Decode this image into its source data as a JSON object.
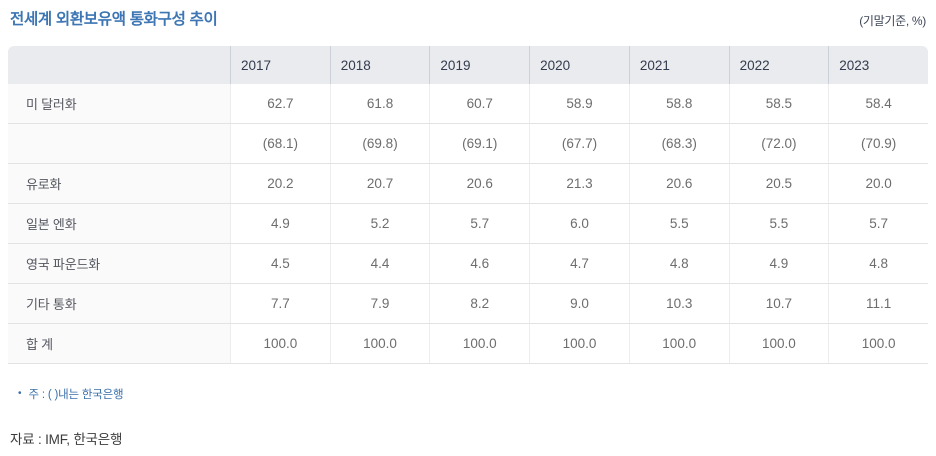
{
  "title": "전세계 외환보유액 통화구성 추이",
  "unit_note": "(기말기준, %)",
  "table": {
    "columns": [
      "2017",
      "2018",
      "2019",
      "2020",
      "2021",
      "2022",
      "2023"
    ],
    "rows": [
      {
        "label": "미 달러화",
        "values": [
          "62.7",
          "61.8",
          "60.7",
          "58.9",
          "58.8",
          "58.5",
          "58.4"
        ]
      },
      {
        "label": "",
        "values": [
          "(68.1)",
          "(69.8)",
          "(69.1)",
          "(67.7)",
          "(68.3)",
          "(72.0)",
          "(70.9)"
        ]
      },
      {
        "label": "유로화",
        "values": [
          "20.2",
          "20.7",
          "20.6",
          "21.3",
          "20.6",
          "20.5",
          "20.0"
        ]
      },
      {
        "label": "일본 엔화",
        "values": [
          "4.9",
          "5.2",
          "5.7",
          "6.0",
          "5.5",
          "5.5",
          "5.7"
        ]
      },
      {
        "label": "영국 파운드화",
        "values": [
          "4.5",
          "4.4",
          "4.6",
          "4.7",
          "4.8",
          "4.9",
          "4.8"
        ]
      },
      {
        "label": "기타 통화",
        "values": [
          "7.7",
          "7.9",
          "8.2",
          "9.0",
          "10.3",
          "10.7",
          "11.1"
        ]
      },
      {
        "label": "합 계",
        "values": [
          "100.0",
          "100.0",
          "100.0",
          "100.0",
          "100.0",
          "100.0",
          "100.0"
        ]
      }
    ]
  },
  "footnote": {
    "bullet": "•",
    "text": "주 : ( )내는 한국은행"
  },
  "source": "자료 : IMF, 한국은행",
  "colors": {
    "title_blue": "#3d76b3",
    "header_bg": "#e9ebee",
    "header_text": "#333b4e",
    "row_border": "#e3e3e3",
    "label_bg": "#fafafa",
    "value_text": "#6d6d6d",
    "footnote_blue": "#3a70aa"
  },
  "chart_data": {
    "type": "table",
    "title": "전세계 외환보유액 통화구성 추이",
    "unit": "기말기준, %",
    "categories": [
      "2017",
      "2018",
      "2019",
      "2020",
      "2021",
      "2022",
      "2023"
    ],
    "series": [
      {
        "name": "미 달러화",
        "values": [
          62.7,
          61.8,
          60.7,
          58.9,
          58.8,
          58.5,
          58.4
        ]
      },
      {
        "name": "",
        "values": [
          68.1,
          69.8,
          69.1,
          67.7,
          68.3,
          72.0,
          70.9
        ],
        "display": "parenthesized"
      },
      {
        "name": "유로화",
        "values": [
          20.2,
          20.7,
          20.6,
          21.3,
          20.6,
          20.5,
          20.0
        ]
      },
      {
        "name": "일본 엔화",
        "values": [
          4.9,
          5.2,
          5.7,
          6.0,
          5.5,
          5.5,
          5.7
        ]
      },
      {
        "name": "영국 파운드화",
        "values": [
          4.5,
          4.4,
          4.6,
          4.7,
          4.8,
          4.9,
          4.8
        ]
      },
      {
        "name": "기타 통화",
        "values": [
          7.7,
          7.9,
          8.2,
          9.0,
          10.3,
          10.7,
          11.1
        ]
      },
      {
        "name": "합 계",
        "values": [
          100.0,
          100.0,
          100.0,
          100.0,
          100.0,
          100.0,
          100.0
        ]
      }
    ],
    "note": "주 : ( )내는 한국은행",
    "source": "자료 : IMF, 한국은행"
  }
}
